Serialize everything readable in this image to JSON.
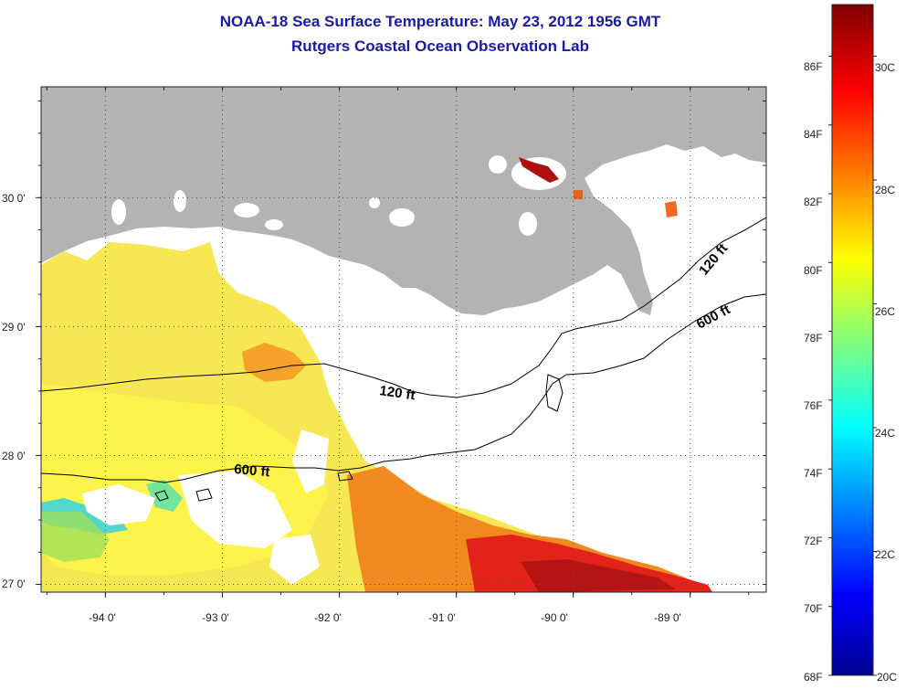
{
  "title": {
    "line1": "NOAA-18 Sea Surface Temperature:  May 23, 2012 1956 GMT",
    "line2": "Rutgers Coastal Ocean Observation Lab"
  },
  "map": {
    "lon_range": [
      -94.55,
      -88.35
    ],
    "lat_range": [
      26.94,
      30.86
    ],
    "lon_ticks": [
      -94,
      -93,
      -92,
      -91,
      -90,
      -89
    ],
    "lat_ticks": [
      27,
      28,
      29,
      30
    ],
    "lon_tick_labels": [
      "-94 0'",
      "-93 0'",
      "-92 0'",
      "-91 0'",
      "-90 0'",
      "-89 0'"
    ],
    "lat_tick_labels": [
      "27 0'",
      "28 0'",
      "29 0'",
      "30 0'"
    ],
    "grid": "dotted",
    "land_color": "#b3b3b3",
    "contours": [
      {
        "label": "120 ft"
      },
      {
        "label": "120 ft"
      },
      {
        "label": "600 ft"
      },
      {
        "label": "600 ft"
      }
    ]
  },
  "colorbar": {
    "f_labels": [
      "86F",
      "84F",
      "82F",
      "80F",
      "78F",
      "76F",
      "74F",
      "72F",
      "70F",
      "68F"
    ],
    "c_labels": [
      "30C",
      "28C",
      "26C",
      "24C",
      "22C",
      "20C"
    ],
    "f_range": [
      68,
      87.5
    ]
  }
}
